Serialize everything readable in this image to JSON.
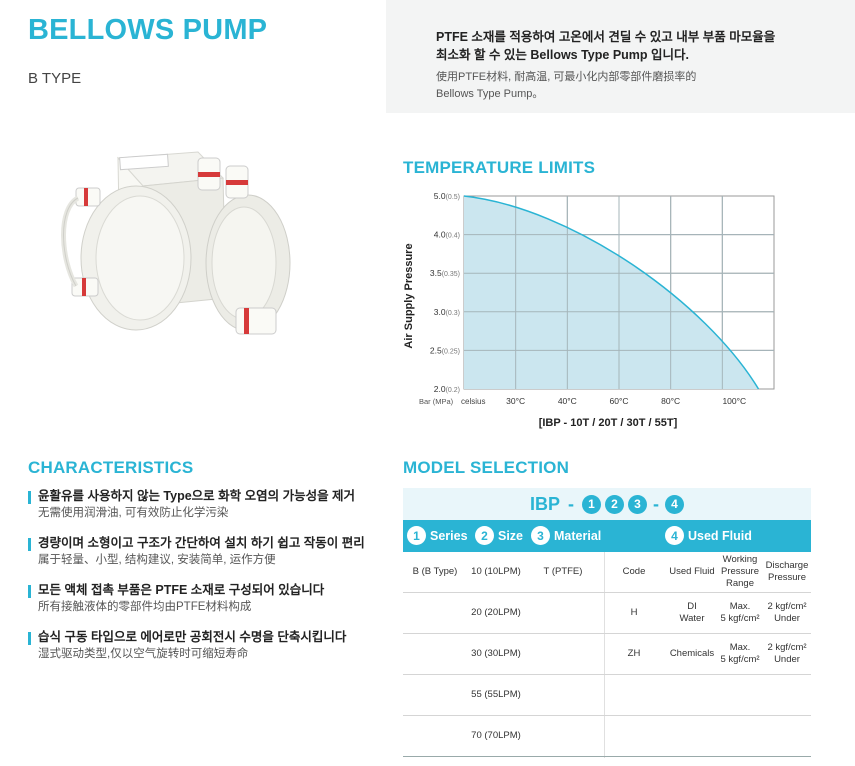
{
  "header": {
    "title": "BELLOWS PUMP",
    "subtitle": "B TYPE",
    "desc_ko_line1": "PTFE 소재를 적용하여 고온에서 견딜 수 있고 내부 부품 마모율을",
    "desc_ko_line2": "최소화 할 수 있는 Bellows Type Pump 입니다.",
    "desc_cn_line1": "使用PTFE材料, 耐高温, 可最小化内部零部件磨损率的",
    "desc_cn_line2": "Bellows Type Pump。"
  },
  "temperature": {
    "section_title": "TEMPERATURE LIMITS",
    "chart_data": {
      "type": "area",
      "title": "",
      "xlabel": "[IBP - 10T / 20T / 30T / 55T]",
      "ylabel": "Air Supply Pressure",
      "y_unit_label": "Bar (MPa)",
      "x_unit_label": "celsius",
      "x_ticks": [
        "30°C",
        "40°C",
        "60°C",
        "80°C",
        "100°C"
      ],
      "y_ticks": [
        {
          "bar": "5.0",
          "mpa": "(0.5)"
        },
        {
          "bar": "4.0",
          "mpa": "(0.4)"
        },
        {
          "bar": "3.5",
          "mpa": "(0.35)"
        },
        {
          "bar": "3.0",
          "mpa": "(0.3)"
        },
        {
          "bar": "2.5",
          "mpa": "(0.25)"
        },
        {
          "bar": "2.0",
          "mpa": "(0.2)"
        }
      ],
      "grid": true,
      "fill_color": "#cbe6ef",
      "line_color": "#2ab4d4"
    }
  },
  "characteristics": {
    "section_title": "CHARACTERISTICS",
    "items": [
      {
        "ko": "윤활유를 사용하지 않는 Type으로  화학 오염의 가능성을 제거",
        "cn": "无需使用润滑油, 可有效防止化学污染"
      },
      {
        "ko": "경량이며 소형이고 구조가 간단하여 설치 하기 쉽고 작동이 편리",
        "cn": "属于轻量、小型, 结构建议, 安装简单, 运作方便"
      },
      {
        "ko": "모든 액체 접촉 부품은 PTFE 소재로 구성되어 있습니다",
        "cn": "所有接触液体的零部件均由PTFE材料构成"
      },
      {
        "ko": "습식 구동 타입으로 에어로만 공회전시 수명을 단축시킵니다",
        "cn": "湿式驱动类型,仅以空气旋转时可缩短寿命"
      }
    ]
  },
  "model": {
    "section_title": "MODEL SELECTION",
    "code_prefix": "IBP",
    "code_sep": "-",
    "code_nums": [
      "1",
      "2",
      "3",
      "4"
    ],
    "headers": [
      {
        "num": "1",
        "label": "Series"
      },
      {
        "num": "2",
        "label": "Size"
      },
      {
        "num": "3",
        "label": "Material"
      },
      {
        "num": "4",
        "label": "Used Fluid"
      }
    ],
    "rows": [
      {
        "series": "B (B Type)",
        "size": "10 (10LPM)",
        "material": "T (PTFE)",
        "code": "Code",
        "fluid": "Used Fluid",
        "wp1": "Working",
        "wp2": "Pressure",
        "wp3": "Range",
        "dp1": "Discharge",
        "dp2": "Pressure",
        "dp3": ""
      },
      {
        "series": "",
        "size": "20 (20LPM)",
        "material": "",
        "code": "H",
        "fluid": "DI\nWater",
        "wp1": "Max.",
        "wp2": "5 kgf/cm²",
        "wp3": "",
        "dp1": "2 kgf/cm²",
        "dp2": "Under",
        "dp3": ""
      },
      {
        "series": "",
        "size": "30 (30LPM)",
        "material": "",
        "code": "ZH",
        "fluid": "Chemicals",
        "wp1": "Max.",
        "wp2": "5 kgf/cm²",
        "wp3": "",
        "dp1": "2 kgf/cm²",
        "dp2": "Under",
        "dp3": ""
      },
      {
        "series": "",
        "size": "55 (55LPM)",
        "material": "",
        "code": "",
        "fluid": "",
        "wp1": "",
        "wp2": "",
        "wp3": "",
        "dp1": "",
        "dp2": "",
        "dp3": ""
      },
      {
        "series": "",
        "size": "70 (70LPM)",
        "material": "",
        "code": "",
        "fluid": "",
        "wp1": "",
        "wp2": "",
        "wp3": "",
        "dp1": "",
        "dp2": "",
        "dp3": ""
      }
    ]
  }
}
